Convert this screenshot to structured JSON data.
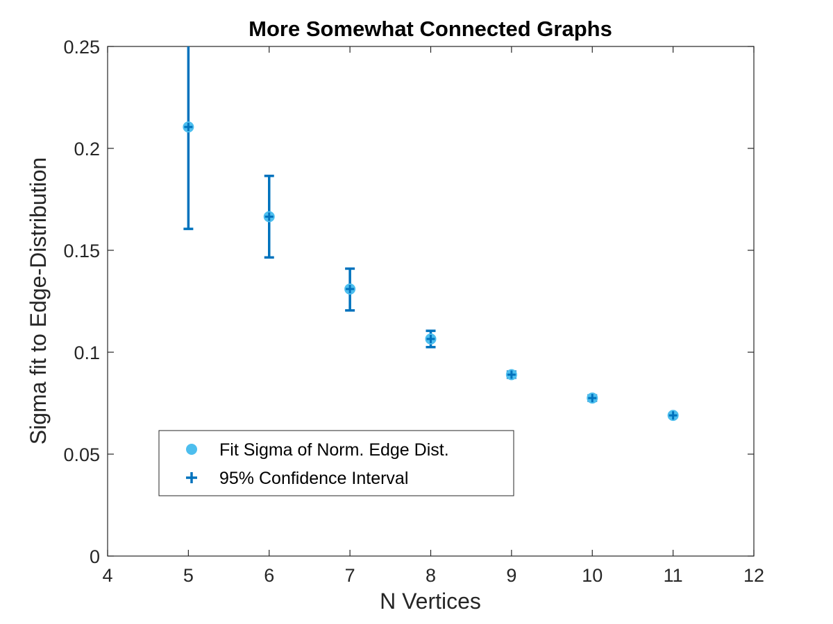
{
  "chart_data": {
    "type": "scatter",
    "title": "More Somewhat Connected Graphs",
    "xlabel": "N Vertices",
    "ylabel": "Sigma fit to Edge-Distribution",
    "xlim": [
      4,
      12
    ],
    "ylim": [
      0,
      0.25
    ],
    "xticks": [
      4,
      5,
      6,
      7,
      8,
      9,
      10,
      11,
      12
    ],
    "yticks": [
      0,
      0.05,
      0.1,
      0.15,
      0.2,
      0.25
    ],
    "xtick_labels": [
      "4",
      "5",
      "6",
      "7",
      "8",
      "9",
      "10",
      "11",
      "12"
    ],
    "ytick_labels": [
      "0",
      "0.05",
      "0.1",
      "0.15",
      "0.2",
      "0.25"
    ],
    "grid": false,
    "legend_position": "lower-left",
    "series": [
      {
        "name": "Fit Sigma of Norm. Edge Dist.",
        "color": "#4DBEEE",
        "marker": "circle",
        "x": [
          5,
          6,
          7,
          8,
          9,
          10,
          11
        ],
        "y": [
          0.2105,
          0.1665,
          0.131,
          0.1065,
          0.089,
          0.0775,
          0.069
        ]
      },
      {
        "name": "95% Confidence Interval",
        "color": "#0072BD",
        "marker": "plus",
        "x": [
          5,
          6,
          7,
          8,
          9,
          10,
          11
        ],
        "y": [
          0.2105,
          0.1665,
          0.131,
          0.1065,
          0.089,
          0.0775,
          0.069
        ],
        "lower": [
          0.1605,
          0.1465,
          0.1205,
          0.1025,
          0.0875,
          0.0762,
          0.0682
        ],
        "upper": [
          0.26,
          0.1865,
          0.141,
          0.1105,
          0.0905,
          0.0788,
          0.0698
        ]
      }
    ]
  }
}
